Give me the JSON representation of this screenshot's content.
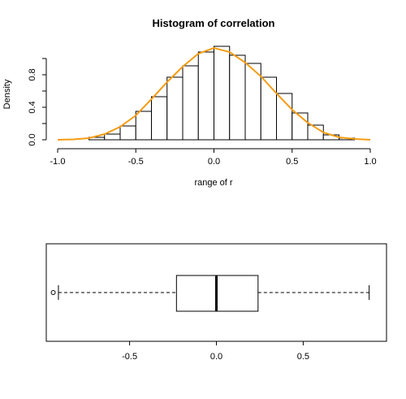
{
  "chart_data": [
    {
      "type": "histogram",
      "title": "Histogram of correlation",
      "xlabel": "range of r",
      "ylabel": "Density",
      "xlim": [
        -1.0,
        1.0
      ],
      "ylim": [
        0,
        1.0
      ],
      "x_ticks": [
        "-1.0",
        "-0.5",
        "0.0",
        "0.5",
        "1.0"
      ],
      "x_tick_values": [
        -1.0,
        -0.5,
        0.0,
        0.5,
        1.0
      ],
      "y_ticks": [
        "0.0",
        "0.4",
        "0.8"
      ],
      "y_tick_values": [
        0.0,
        0.4,
        0.8
      ],
      "bins": [
        {
          "from": -0.8,
          "to": -0.7,
          "density": 0.03
        },
        {
          "from": -0.7,
          "to": -0.6,
          "density": 0.07
        },
        {
          "from": -0.6,
          "to": -0.5,
          "density": 0.17
        },
        {
          "from": -0.5,
          "to": -0.4,
          "density": 0.35
        },
        {
          "from": -0.4,
          "to": -0.3,
          "density": 0.53
        },
        {
          "from": -0.3,
          "to": -0.2,
          "density": 0.77
        },
        {
          "from": -0.2,
          "to": -0.1,
          "density": 0.91
        },
        {
          "from": -0.1,
          "to": 0.0,
          "density": 1.08
        },
        {
          "from": 0.0,
          "to": 0.1,
          "density": 1.15
        },
        {
          "from": 0.1,
          "to": 0.2,
          "density": 1.04
        },
        {
          "from": 0.2,
          "to": 0.3,
          "density": 0.94
        },
        {
          "from": 0.3,
          "to": 0.4,
          "density": 0.77
        },
        {
          "from": 0.4,
          "to": 0.5,
          "density": 0.57
        },
        {
          "from": 0.5,
          "to": 0.6,
          "density": 0.33
        },
        {
          "from": 0.6,
          "to": 0.7,
          "density": 0.18
        },
        {
          "from": 0.7,
          "to": 0.8,
          "density": 0.06
        },
        {
          "from": 0.8,
          "to": 0.9,
          "density": 0.02
        }
      ],
      "density_curve": {
        "color": "#f39c12",
        "x": [
          -1.0,
          -0.9,
          -0.8,
          -0.7,
          -0.6,
          -0.5,
          -0.4,
          -0.3,
          -0.2,
          -0.1,
          0.0,
          0.1,
          0.2,
          0.3,
          0.4,
          0.5,
          0.6,
          0.7,
          0.8,
          0.9,
          1.0
        ],
        "y": [
          0.0,
          0.005,
          0.02,
          0.07,
          0.16,
          0.3,
          0.5,
          0.71,
          0.9,
          1.06,
          1.13,
          1.08,
          0.95,
          0.78,
          0.57,
          0.37,
          0.21,
          0.09,
          0.03,
          0.01,
          0.0
        ]
      }
    },
    {
      "type": "boxplot",
      "orientation": "horizontal",
      "xlim": [
        -0.98,
        0.98
      ],
      "x_ticks": [
        "-0.5",
        "0.0",
        "0.5"
      ],
      "x_tick_values": [
        -0.5,
        0.0,
        0.5
      ],
      "whisker_low": -0.91,
      "q1": -0.23,
      "median": 0.0,
      "q3": 0.24,
      "whisker_high": 0.88,
      "outliers": [
        -0.94
      ]
    }
  ]
}
